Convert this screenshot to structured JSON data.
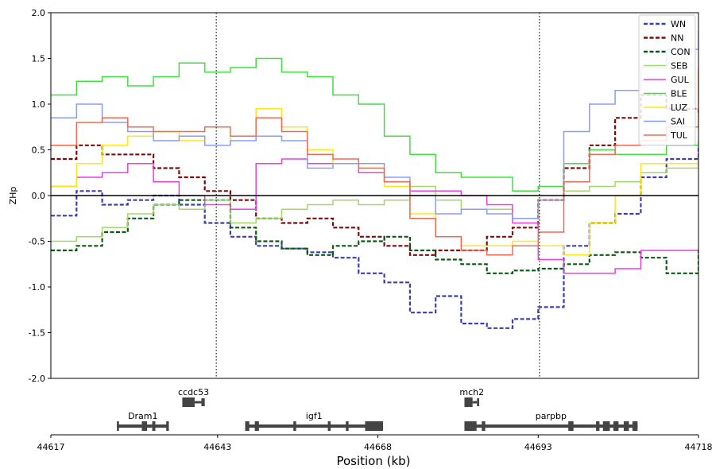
{
  "chart_data": {
    "type": "line",
    "xlabel": "Position (kb)",
    "ylabel": "ZHp",
    "ylim": [
      -2.0,
      2.0
    ],
    "xlim": [
      44617,
      44718
    ],
    "yticks": [
      "2.0",
      "1.5",
      "1.0",
      "0.5",
      "0.0",
      "-0.5",
      "-1.0",
      "-1.5",
      "-2.0"
    ],
    "ytick_values": [
      2.0,
      1.5,
      1.0,
      0.5,
      0.0,
      -0.5,
      -1.0,
      -1.5,
      -2.0
    ],
    "xticks": [
      "44617",
      "44643",
      "44668",
      "44693",
      "44718"
    ],
    "xtick_values": [
      44617,
      44643,
      44668,
      44693,
      44718
    ],
    "hline": 0.0,
    "vlines": [
      44642.8,
      44693.2
    ],
    "grid": false,
    "legend_position": "top-right",
    "series": [
      {
        "name": "WN",
        "color": "#3b3fae",
        "style": "dashed",
        "x": [
          44617,
          44621,
          44625,
          44629,
          44633,
          44637,
          44641,
          44645,
          44649,
          44653,
          44657,
          44661,
          44665,
          44669,
          44673,
          44677,
          44681,
          44685,
          44689,
          44693,
          44697,
          44701,
          44705,
          44709,
          44713,
          44718
        ],
        "y": [
          -0.22,
          0.05,
          -0.1,
          -0.05,
          0.0,
          -0.1,
          -0.3,
          -0.45,
          -0.55,
          -0.58,
          -0.62,
          -0.68,
          -0.85,
          -0.95,
          -1.28,
          -1.1,
          -1.4,
          -1.45,
          -1.35,
          -1.22,
          -0.55,
          -0.3,
          -0.2,
          0.2,
          0.4,
          0.55
        ]
      },
      {
        "name": "NN",
        "color": "#7b0a0a",
        "style": "dashed",
        "x": [
          44617,
          44621,
          44625,
          44629,
          44633,
          44637,
          44641,
          44645,
          44649,
          44653,
          44657,
          44661,
          44665,
          44669,
          44673,
          44677,
          44681,
          44685,
          44689,
          44693,
          44697,
          44701,
          44705,
          44709,
          44713,
          44718
        ],
        "y": [
          0.4,
          0.55,
          0.45,
          0.45,
          0.3,
          0.2,
          0.05,
          -0.05,
          -0.25,
          -0.3,
          -0.25,
          -0.35,
          -0.45,
          -0.55,
          -0.65,
          -0.6,
          -0.6,
          -0.45,
          -0.35,
          -0.05,
          0.3,
          0.55,
          0.85,
          1.1,
          0.95,
          0.9
        ]
      },
      {
        "name": "CON",
        "color": "#0a5a14",
        "style": "dashed",
        "x": [
          44617,
          44621,
          44625,
          44629,
          44633,
          44637,
          44641,
          44645,
          44649,
          44653,
          44657,
          44661,
          44665,
          44669,
          44673,
          44677,
          44681,
          44685,
          44689,
          44693,
          44697,
          44701,
          44705,
          44709,
          44713,
          44718
        ],
        "y": [
          -0.6,
          -0.55,
          -0.4,
          -0.25,
          -0.1,
          -0.05,
          -0.05,
          -0.35,
          -0.5,
          -0.58,
          -0.65,
          -0.55,
          -0.5,
          -0.45,
          -0.6,
          -0.7,
          -0.75,
          -0.85,
          -0.82,
          -0.8,
          -0.75,
          -0.65,
          -0.62,
          -0.68,
          -0.85,
          -0.6
        ]
      },
      {
        "name": "SEB",
        "color": "#a6d66a",
        "style": "solid",
        "x": [
          44617,
          44621,
          44625,
          44629,
          44633,
          44637,
          44641,
          44645,
          44649,
          44653,
          44657,
          44661,
          44665,
          44669,
          44673,
          44677,
          44681,
          44685,
          44689,
          44693,
          44697,
          44701,
          44705,
          44709,
          44713,
          44718
        ],
        "y": [
          -0.5,
          -0.45,
          -0.35,
          -0.2,
          -0.1,
          -0.15,
          -0.05,
          -0.3,
          -0.25,
          -0.15,
          -0.1,
          -0.05,
          -0.1,
          -0.05,
          0.1,
          -0.05,
          -0.15,
          -0.15,
          -0.25,
          -0.05,
          0.05,
          0.1,
          0.15,
          0.25,
          0.3,
          0.4
        ]
      },
      {
        "name": "GUL",
        "color": "#ec3fe0",
        "style": "solid",
        "x": [
          44617,
          44621,
          44625,
          44629,
          44633,
          44637,
          44641,
          44645,
          44649,
          44653,
          44657,
          44661,
          44665,
          44669,
          44673,
          44677,
          44681,
          44685,
          44689,
          44693,
          44697,
          44701,
          44705,
          44709,
          44713,
          44718
        ],
        "y": [
          0.1,
          0.2,
          0.25,
          0.35,
          0.15,
          0.0,
          -0.1,
          -0.15,
          0.35,
          0.4,
          0.35,
          0.35,
          0.25,
          0.15,
          0.05,
          0.05,
          0.0,
          -0.1,
          -0.3,
          -0.7,
          -0.85,
          -0.85,
          -0.8,
          -0.6,
          -0.6,
          -0.58
        ]
      },
      {
        "name": "BLE",
        "color": "#3ee03e",
        "style": "solid",
        "x": [
          44617,
          44621,
          44625,
          44629,
          44633,
          44637,
          44641,
          44645,
          44649,
          44653,
          44657,
          44661,
          44665,
          44669,
          44673,
          44677,
          44681,
          44685,
          44689,
          44693,
          44697,
          44701,
          44705,
          44709,
          44713,
          44718
        ],
        "y": [
          1.1,
          1.25,
          1.3,
          1.2,
          1.3,
          1.45,
          1.35,
          1.4,
          1.5,
          1.35,
          1.3,
          1.1,
          1.0,
          0.65,
          0.45,
          0.25,
          0.2,
          0.2,
          0.05,
          0.1,
          0.35,
          0.5,
          0.45,
          0.45,
          0.55,
          0.6
        ]
      },
      {
        "name": "LUZ",
        "color": "#ffe51a",
        "style": "solid",
        "x": [
          44617,
          44621,
          44625,
          44629,
          44633,
          44637,
          44641,
          44645,
          44649,
          44653,
          44657,
          44661,
          44665,
          44669,
          44673,
          44677,
          44681,
          44685,
          44689,
          44693,
          44697,
          44701,
          44705,
          44709,
          44713,
          44718
        ],
        "y": [
          0.1,
          0.35,
          0.55,
          0.65,
          0.7,
          0.6,
          0.55,
          0.65,
          0.95,
          0.75,
          0.5,
          0.35,
          0.3,
          0.1,
          -0.2,
          -0.45,
          -0.55,
          -0.55,
          -0.5,
          -0.55,
          -0.65,
          -0.3,
          0.0,
          0.35,
          0.35,
          0.4
        ]
      },
      {
        "name": "SAI",
        "color": "#8c9cf2",
        "style": "solid",
        "x": [
          44617,
          44621,
          44625,
          44629,
          44633,
          44637,
          44641,
          44645,
          44649,
          44653,
          44657,
          44661,
          44665,
          44669,
          44673,
          44677,
          44681,
          44685,
          44689,
          44693,
          44697,
          44701,
          44705,
          44709,
          44713,
          44718
        ],
        "y": [
          0.85,
          1.0,
          0.8,
          0.7,
          0.6,
          0.65,
          0.55,
          0.6,
          0.65,
          0.6,
          0.3,
          0.35,
          0.35,
          0.2,
          0.0,
          -0.2,
          -0.15,
          -0.2,
          -0.25,
          -0.05,
          0.7,
          1.0,
          1.15,
          1.4,
          1.6,
          1.8
        ]
      },
      {
        "name": "TUL",
        "color": "#f26a55",
        "style": "solid",
        "x": [
          44617,
          44621,
          44625,
          44629,
          44633,
          44637,
          44641,
          44645,
          44649,
          44653,
          44657,
          44661,
          44665,
          44669,
          44673,
          44677,
          44681,
          44685,
          44689,
          44693,
          44697,
          44701,
          44705,
          44709,
          44713,
          44718
        ],
        "y": [
          0.55,
          0.8,
          0.85,
          0.75,
          0.7,
          0.7,
          0.75,
          0.65,
          0.85,
          0.7,
          0.45,
          0.4,
          0.3,
          0.15,
          -0.25,
          -0.45,
          -0.6,
          -0.65,
          -0.55,
          -0.4,
          0.15,
          0.45,
          0.55,
          0.6,
          0.75,
          1.4
        ]
      }
    ],
    "gene_track_top": [
      {
        "name": "ccdc53",
        "start": 44637.5,
        "end": 44641.0
      },
      {
        "name": "mch2",
        "start": 44681.5,
        "end": 44683.8
      }
    ],
    "gene_track_bottom": [
      {
        "name": "Dram1",
        "start": 44627.3,
        "end": 44635.4
      },
      {
        "name": "igf1",
        "start": 44647.3,
        "end": 44668.8
      },
      {
        "name": "parpbp",
        "start": 44681.5,
        "end": 44708.5
      }
    ]
  }
}
